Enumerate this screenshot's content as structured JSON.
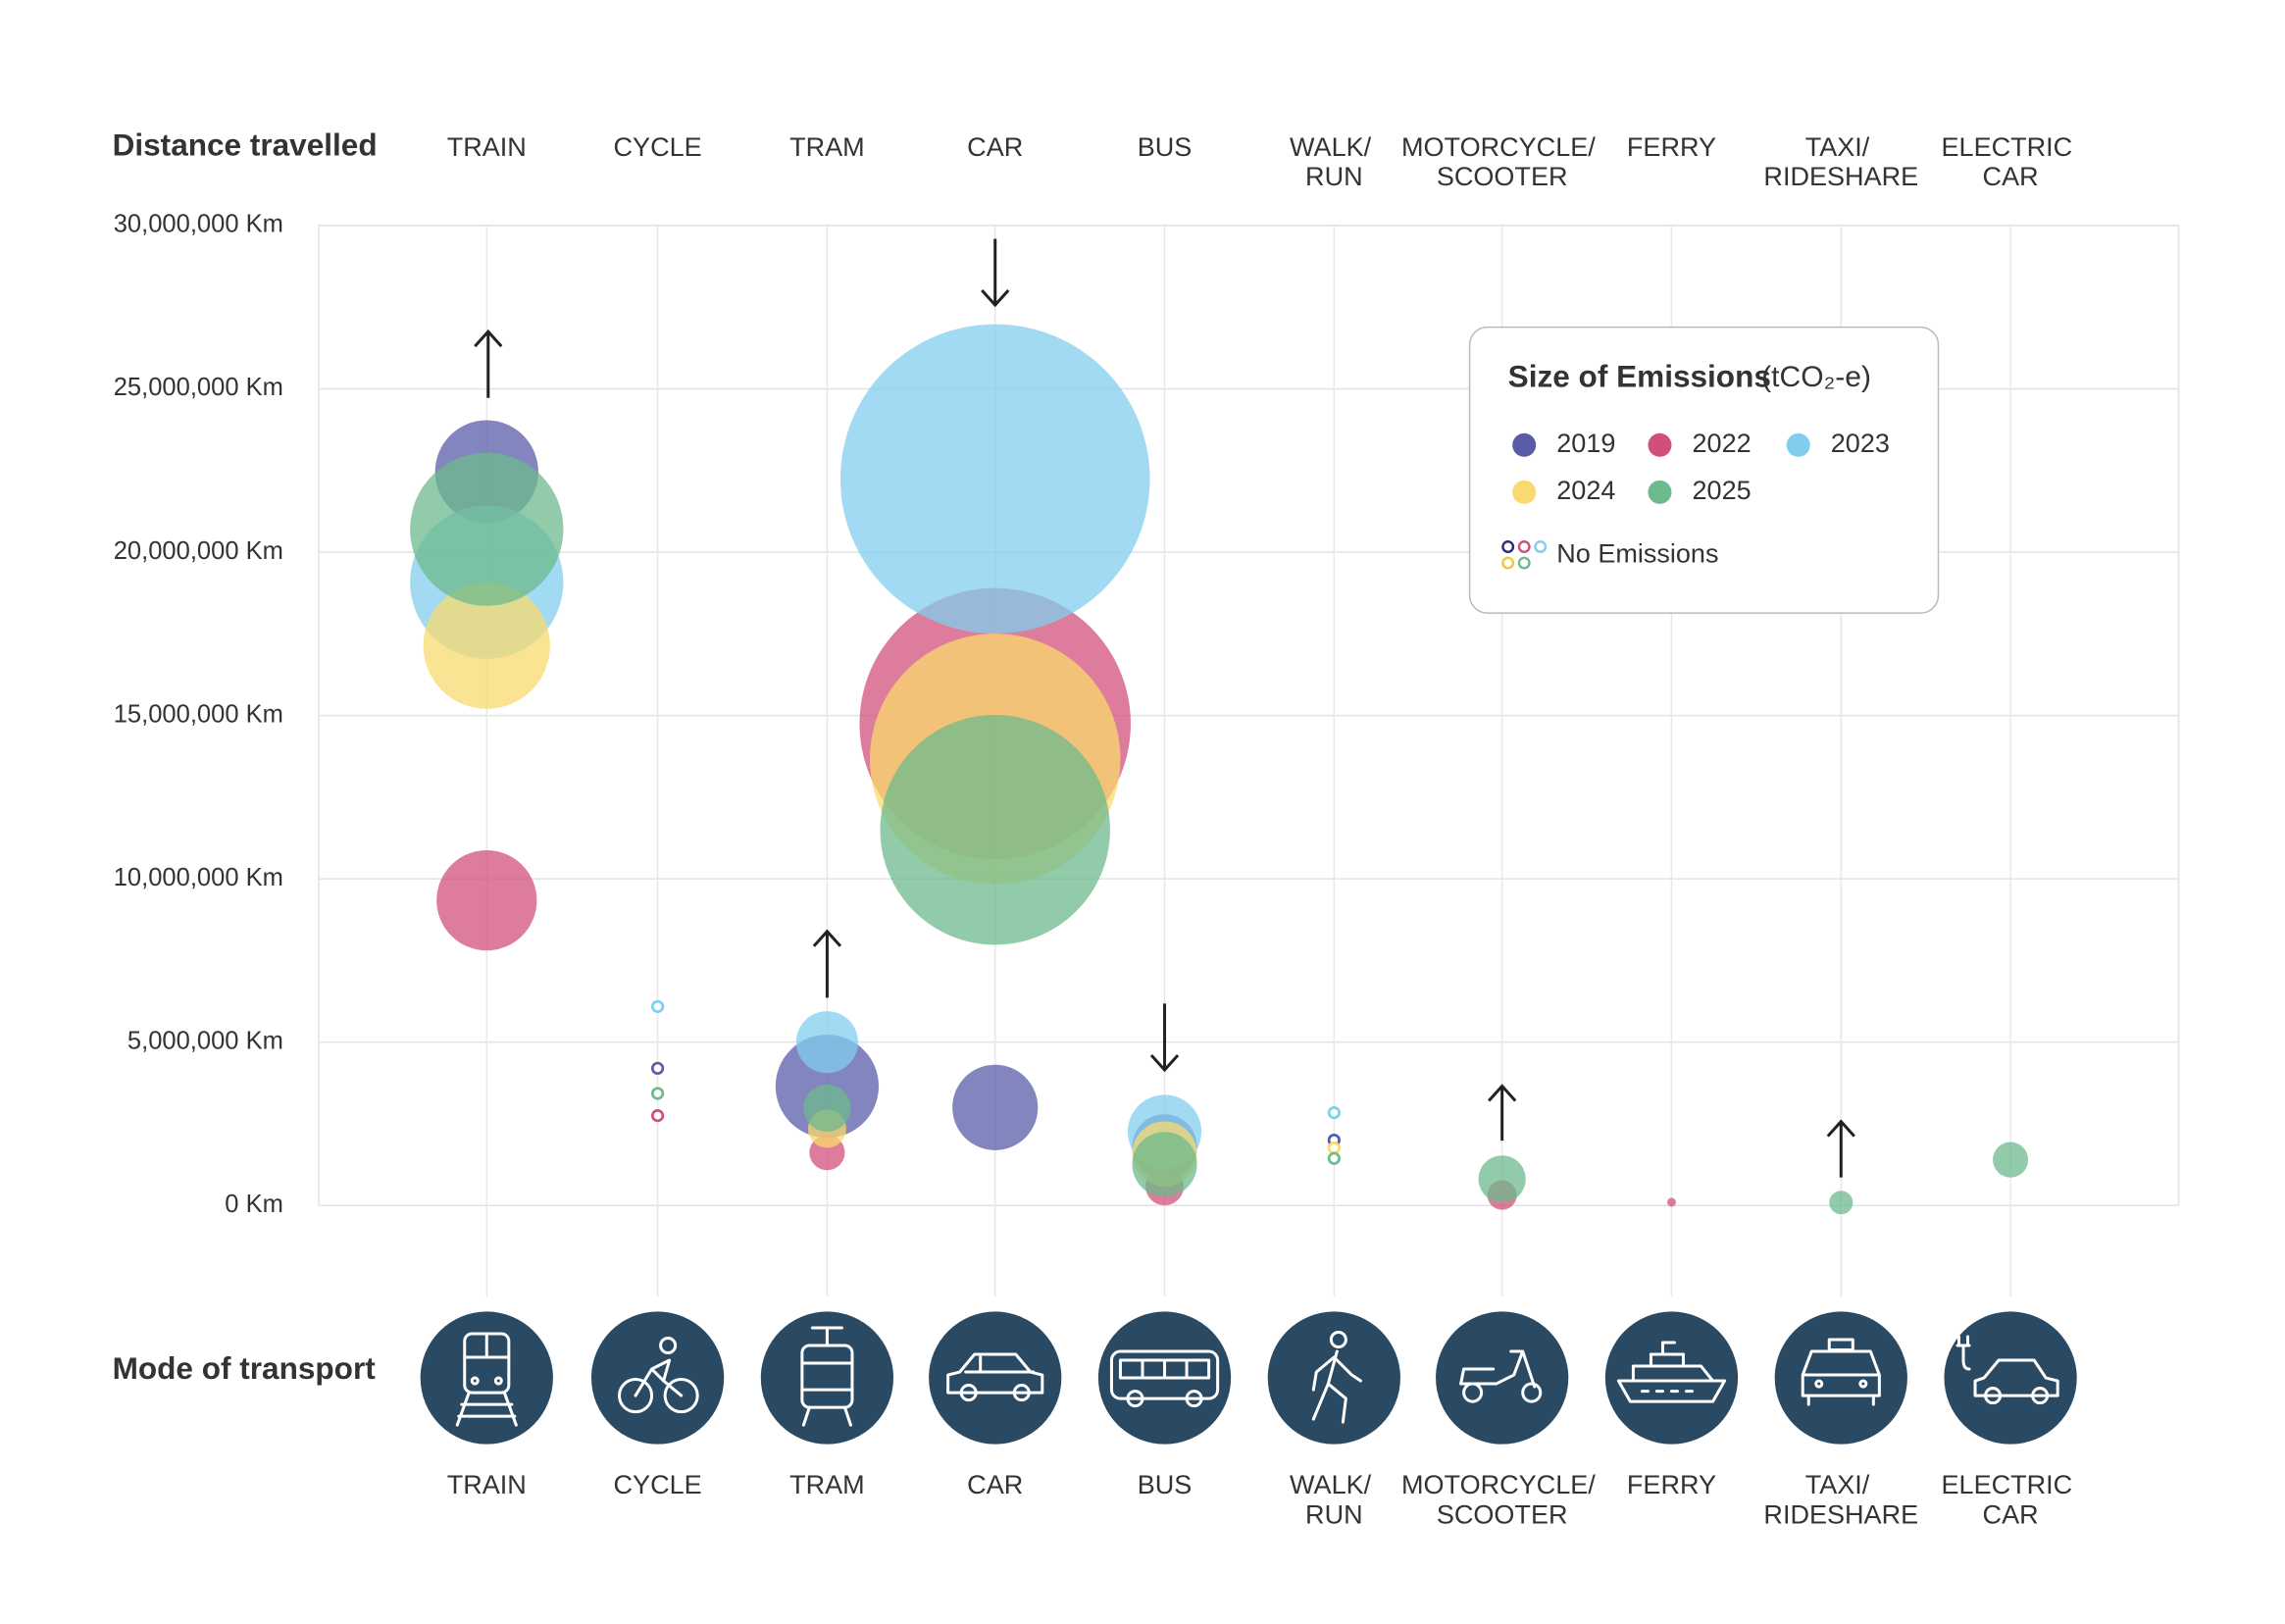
{
  "chart_data": {
    "type": "bubble",
    "y_label": "Distance travelled",
    "x_label": "Mode of transport",
    "categories": [
      "TRAIN",
      "CYCLE",
      "TRAM",
      "CAR",
      "BUS",
      "WALK/ RUN",
      "MOTORCYCLE/ SCOOTER",
      "FERRY",
      "TAXI/ RIDESHARE",
      "ELECTRIC CAR"
    ],
    "ylim": [
      0,
      30000000
    ],
    "yticks": [
      {
        "value": 0,
        "label": "0 Km"
      },
      {
        "value": 5000000,
        "label": "5,000,000 Km"
      },
      {
        "value": 10000000,
        "label": "10,000,000 Km"
      },
      {
        "value": 15000000,
        "label": "15,000,000 Km"
      },
      {
        "value": 20000000,
        "label": "20,000,000 Km"
      },
      {
        "value": 25000000,
        "label": "25,000,000 Km"
      },
      {
        "value": 30000000,
        "label": "30,000,000 Km"
      }
    ],
    "grid": true,
    "legend_title": "Size of Emissions",
    "legend_unit": "(tCO₂-e)",
    "no_emissions_label": "No Emissions",
    "series": [
      {
        "name": "2019",
        "color": "#5a5ca8",
        "values": [
          22460000,
          4200000,
          3650000,
          3000000,
          1800000,
          2000000,
          null,
          null,
          null,
          null
        ],
        "sizes": [
          1225,
          0,
          1225,
          841,
          484,
          0,
          null,
          null,
          null,
          null
        ]
      },
      {
        "name": "2022",
        "color": "#d1507b",
        "values": [
          9340000,
          2750000,
          1620000,
          14750000,
          590000,
          null,
          320000,
          100000,
          null,
          null
        ],
        "sizes": [
          1156,
          0,
          144,
          8464,
          169,
          null,
          100,
          9,
          null,
          null
        ]
      },
      {
        "name": "2023",
        "color": "#82cdee",
        "values": [
          19080000,
          6090000,
          5000000,
          22240000,
          2260000,
          2840000,
          null,
          null,
          null,
          null
        ],
        "sizes": [
          2704,
          0,
          441,
          11025,
          625,
          0,
          null,
          null,
          null,
          null
        ]
      },
      {
        "name": "2024",
        "color": "#f8da6e",
        "values": [
          17140000,
          null,
          2350000,
          13670000,
          1580000,
          1760000,
          null,
          null,
          null,
          null
        ],
        "sizes": [
          1849,
          null,
          169,
          7225,
          484,
          0,
          null,
          null,
          null,
          null
        ]
      },
      {
        "name": "2025",
        "color": "#6dba8c",
        "values": [
          20700000,
          3430000,
          2980000,
          11500000,
          1260000,
          1440000,
          810000,
          null,
          90000,
          1400000
        ],
        "sizes": [
          2704,
          0,
          256,
          6084,
          484,
          0,
          256,
          null,
          64,
          144
        ]
      }
    ]
  }
}
